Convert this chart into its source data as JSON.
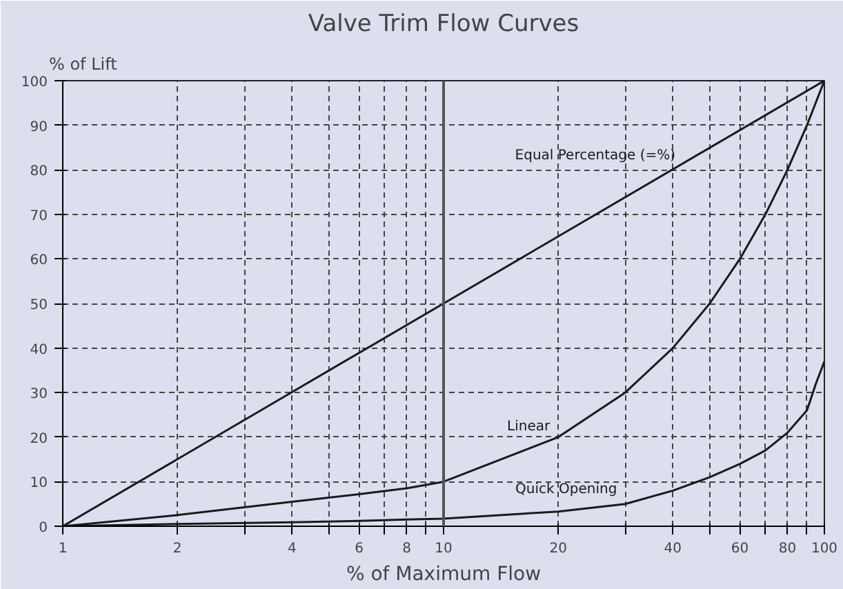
{
  "chart_data": {
    "type": "line",
    "title": "Valve Trim Flow Curves",
    "xlabel": "% of Maximum Flow",
    "ylabel": "% of Lift",
    "log": "x",
    "grid": true,
    "line_style": "solid",
    "marker": "none",
    "xlim": [
      1,
      100
    ],
    "ylim": [
      0,
      100
    ],
    "xticks": [
      1,
      2,
      {
        "value": 3,
        "label": null
      },
      4,
      {
        "value": 5,
        "label": null
      },
      6,
      {
        "value": 7,
        "label": null
      },
      8,
      {
        "value": 9,
        "label": null
      },
      10,
      20,
      {
        "value": 30,
        "label": null
      },
      40,
      {
        "value": 50,
        "label": null
      },
      60,
      {
        "value": 70,
        "label": null
      },
      80,
      {
        "value": 90,
        "label": null
      },
      100
    ],
    "yticks": [
      0,
      10,
      20,
      30,
      40,
      50,
      60,
      70,
      80,
      90,
      100
    ],
    "series": [
      {
        "name": "Equal Percentage (=%)",
        "color": "#1a1a1a",
        "x": [
          1,
          10,
          100
        ],
        "values": [
          0,
          50,
          100
        ]
      },
      {
        "name": "Linear",
        "color": "#1a1a1a",
        "x": [
          1,
          2,
          4,
          6,
          8,
          10,
          20,
          30,
          40,
          50,
          60,
          70,
          80,
          90,
          100
        ],
        "values": [
          0,
          2.5,
          5.5,
          7.2,
          8.5,
          10,
          20,
          30,
          40,
          50,
          60,
          70,
          80,
          90,
          100
        ]
      },
      {
        "name": "Quick Opening",
        "color": "#1a1a1a",
        "x": [
          1,
          2,
          4,
          6,
          8,
          10,
          20,
          30,
          40,
          50,
          60,
          70,
          80,
          90,
          95,
          100
        ],
        "values": [
          0,
          0.5,
          0.9,
          1.2,
          1.5,
          1.7,
          3.3,
          5,
          8,
          11,
          14,
          17,
          21,
          26,
          32,
          37
        ]
      }
    ],
    "ref_lines": [
      {
        "axis": "x",
        "value": 10,
        "color": "#555555",
        "line_style": "solid"
      }
    ]
  }
}
